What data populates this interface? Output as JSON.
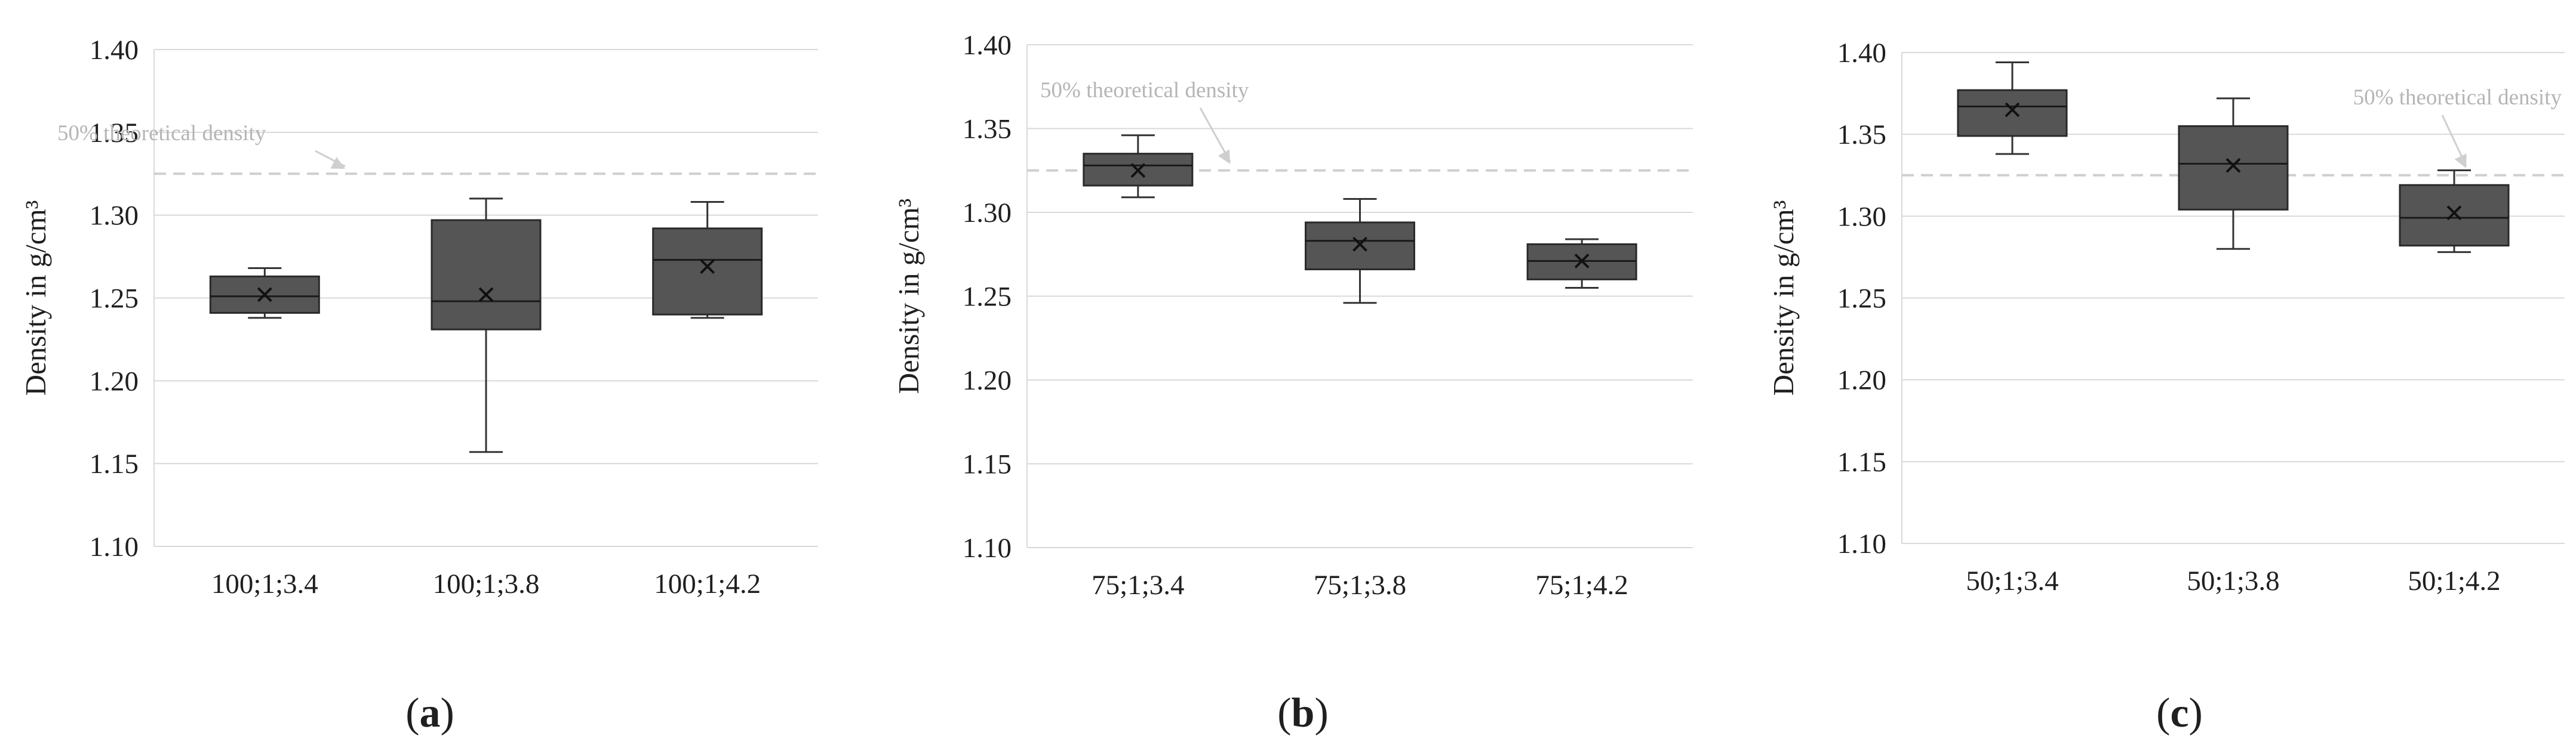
{
  "chart_data": [
    {
      "type": "box",
      "panel_label": "a",
      "ylabel": "Density in g/cm³",
      "ylim": [
        1.1,
        1.4
      ],
      "yticks": [
        "1.10",
        "1.15",
        "1.20",
        "1.25",
        "1.30",
        "1.35",
        "1.40"
      ],
      "grid": true,
      "reference_line": {
        "value": 1.325,
        "label": "50% theoretical density"
      },
      "categories": [
        "100;1;3.4",
        "100;1;3.8",
        "100;1;4.2"
      ],
      "boxes": [
        {
          "min": 1.238,
          "q1": 1.241,
          "median": 1.251,
          "q3": 1.263,
          "max": 1.268,
          "mean": 1.252
        },
        {
          "min": 1.157,
          "q1": 1.231,
          "median": 1.248,
          "q3": 1.297,
          "max": 1.31,
          "mean": 1.252
        },
        {
          "min": 1.238,
          "q1": 1.24,
          "median": 1.273,
          "q3": 1.292,
          "max": 1.308,
          "mean": 1.269
        }
      ]
    },
    {
      "type": "box",
      "panel_label": "b",
      "ylabel": "Density in g/cm³",
      "ylim": [
        1.1,
        1.4
      ],
      "yticks": [
        "1.10",
        "1.15",
        "1.20",
        "1.25",
        "1.30",
        "1.35",
        "1.40"
      ],
      "grid": true,
      "reference_line": {
        "value": 1.325,
        "label": "50% theoretical density"
      },
      "categories": [
        "75;1;3.4",
        "75;1;3.8",
        "75;1;4.2"
      ],
      "boxes": [
        {
          "min": 1.309,
          "q1": 1.316,
          "median": 1.328,
          "q3": 1.335,
          "max": 1.346,
          "mean": 1.325
        },
        {
          "min": 1.246,
          "q1": 1.266,
          "median": 1.283,
          "q3": 1.294,
          "max": 1.308,
          "mean": 1.281
        },
        {
          "min": 1.255,
          "q1": 1.26,
          "median": 1.271,
          "q3": 1.281,
          "max": 1.284,
          "mean": 1.271
        }
      ]
    },
    {
      "type": "box",
      "panel_label": "c",
      "ylabel": "Density in g/cm³",
      "ylim": [
        1.1,
        1.4
      ],
      "yticks": [
        "1.10",
        "1.15",
        "1.20",
        "1.25",
        "1.30",
        "1.35",
        "1.40"
      ],
      "grid": true,
      "reference_line": {
        "value": 1.325,
        "label": "50% theoretical density"
      },
      "categories": [
        "50;1;3.4",
        "50;1;3.8",
        "50;1;4.2"
      ],
      "boxes": [
        {
          "min": 1.338,
          "q1": 1.349,
          "median": 1.367,
          "q3": 1.377,
          "max": 1.394,
          "mean": 1.365
        },
        {
          "min": 1.28,
          "q1": 1.304,
          "median": 1.332,
          "q3": 1.355,
          "max": 1.372,
          "mean": 1.331
        },
        {
          "min": 1.278,
          "q1": 1.282,
          "median": 1.299,
          "q3": 1.319,
          "max": 1.328,
          "mean": 1.302
        }
      ]
    }
  ],
  "colors": {
    "box_fill": "#555555",
    "box_stroke": "#2a2a2a",
    "whisker": "#333333",
    "grid": "#d9d9d9",
    "reference_line": "#cfcfcf",
    "reference_label": "#b5b5b5",
    "text": "#1f1f1f"
  }
}
